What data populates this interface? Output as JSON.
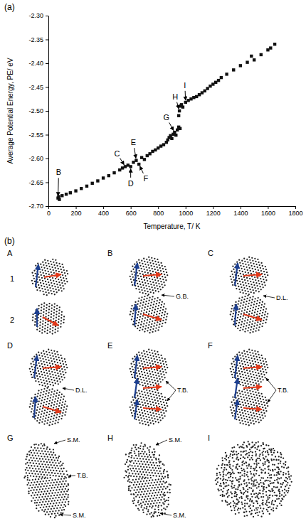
{
  "figure_labels": [
    "(a)",
    "(b)"
  ],
  "chart_data": {
    "type": "scatter",
    "x_label": "Temperature, T/ K",
    "y_label": "Average Potential Energy, PE/ eV",
    "marker": "square",
    "color": "#111111",
    "x": [
      70,
      75,
      80,
      100,
      130,
      160,
      200,
      240,
      280,
      320,
      360,
      400,
      440,
      480,
      520,
      540,
      560,
      580,
      600,
      620,
      640,
      660,
      680,
      700,
      720,
      740,
      760,
      780,
      800,
      820,
      840,
      860,
      870,
      880,
      890,
      900,
      910,
      920,
      930,
      940,
      950,
      960,
      950,
      955,
      960,
      970,
      980,
      1000,
      1020,
      1040,
      1060,
      1080,
      1100,
      1120,
      1140,
      1160,
      1180,
      1200,
      1220,
      1240,
      1260,
      1300,
      1350,
      1400,
      1450,
      1480,
      1500,
      1550,
      1600,
      1620,
      1650
    ],
    "values": [
      -2.683,
      -2.68,
      -2.686,
      -2.678,
      -2.675,
      -2.672,
      -2.668,
      -2.663,
      -2.658,
      -2.652,
      -2.647,
      -2.641,
      -2.636,
      -2.63,
      -2.624,
      -2.62,
      -2.617,
      -2.614,
      -2.617,
      -2.608,
      -2.604,
      -2.612,
      -2.598,
      -2.602,
      -2.594,
      -2.59,
      -2.585,
      -2.582,
      -2.578,
      -2.574,
      -2.571,
      -2.566,
      -2.561,
      -2.556,
      -2.552,
      -2.558,
      -2.549,
      -2.545,
      -2.551,
      -2.54,
      -2.534,
      -2.537,
      -2.51,
      -2.5,
      -2.49,
      -2.487,
      -2.492,
      -2.482,
      -2.478,
      -2.475,
      -2.472,
      -2.47,
      -2.466,
      -2.462,
      -2.458,
      -2.453,
      -2.448,
      -2.444,
      -2.44,
      -2.436,
      -2.43,
      -2.423,
      -2.414,
      -2.405,
      -2.398,
      -2.385,
      -2.393,
      -2.382,
      -2.372,
      -2.368,
      -2.36
    ],
    "xlim": [
      0,
      1800
    ],
    "xticks": [
      0,
      200,
      400,
      600,
      800,
      1000,
      1200,
      1400,
      1600,
      1800
    ],
    "ylim": [
      -2.7,
      -2.3
    ],
    "yticks": [
      {
        "value": -2.7,
        "label": "-2.70"
      },
      {
        "value": -2.65,
        "label": "-2.65"
      },
      {
        "value": -2.6,
        "label": "-2.60"
      },
      {
        "value": -2.55,
        "label": "-2.55"
      },
      {
        "value": -2.5,
        "label": "-2.50"
      },
      {
        "value": -2.45,
        "label": "-2.45"
      },
      {
        "value": -2.4,
        "label": "-2.40"
      },
      {
        "value": -2.35,
        "label": "-2.35"
      },
      {
        "value": -2.3,
        "label": "-2.30"
      }
    ],
    "grid": false,
    "annotations": [
      {
        "text": "B",
        "x": 70,
        "y": -2.683,
        "text_x": 75,
        "text_y": -2.635
      },
      {
        "text": "C",
        "x": 560,
        "y": -2.617,
        "text_x": 500,
        "text_y": -2.595
      },
      {
        "text": "D",
        "x": 600,
        "y": -2.617,
        "text_x": 600,
        "text_y": -2.658
      },
      {
        "text": "E",
        "x": 640,
        "y": -2.604,
        "text_x": 620,
        "text_y": -2.572
      },
      {
        "text": "F",
        "x": 660,
        "y": -2.612,
        "text_x": 710,
        "text_y": -2.648
      },
      {
        "text": "G",
        "x": 920,
        "y": -2.545,
        "text_x": 860,
        "text_y": -2.52
      },
      {
        "text": "H",
        "x": 955,
        "y": -2.5,
        "text_x": 925,
        "text_y": -2.476
      },
      {
        "text": "I",
        "x": 1000,
        "y": -2.482,
        "text_x": 995,
        "text_y": -2.452
      }
    ]
  },
  "snapshots": [
    {
      "label": "A",
      "particle_labels": [
        "1",
        "2"
      ],
      "annotations": []
    },
    {
      "label": "B",
      "annotations": [
        "G.B."
      ]
    },
    {
      "label": "C",
      "annotations": [
        "D.L."
      ]
    },
    {
      "label": "D",
      "annotations": [
        "D.L."
      ]
    },
    {
      "label": "E",
      "annotations": [
        "T.B."
      ]
    },
    {
      "label": "F",
      "annotations": [
        "T.B."
      ]
    },
    {
      "label": "G",
      "annotations": [
        "S.M.",
        "T.B.",
        "S.M."
      ]
    },
    {
      "label": "H",
      "annotations": [
        "S.M.",
        "S.M."
      ]
    },
    {
      "label": "I",
      "annotations": []
    }
  ]
}
